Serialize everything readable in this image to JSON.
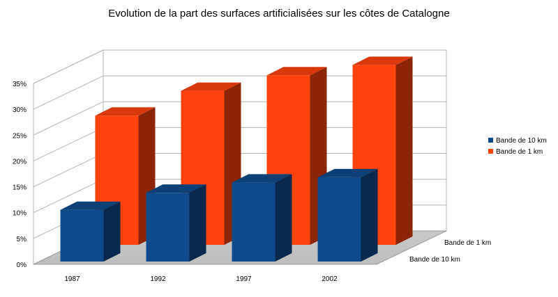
{
  "chart_data": {
    "type": "bar",
    "title": "Evolution de la part des surfaces artificialisées sur les côtes de Catalogne",
    "xlabel": "",
    "ylabel": "",
    "categories": [
      "1987",
      "1992",
      "1997",
      "2002"
    ],
    "series": [
      {
        "name": "Bande de 10 km",
        "values": [
          10,
          13.3,
          15.3,
          16.3
        ],
        "color": "#0f4b8c"
      },
      {
        "name": "Bande de 1 km",
        "values": [
          25,
          29.8,
          32.8,
          34.8
        ],
        "color": "#ff420e"
      }
    ],
    "ylim": [
      0,
      35
    ],
    "ytick_labels": [
      "0%",
      "5%",
      "10%",
      "15%",
      "20%",
      "25%",
      "30%",
      "35%"
    ],
    "depth_labels": [
      "Bande de 10 km",
      "Bande de 1 km"
    ],
    "legend_position": "right",
    "grid": true,
    "style": "3d"
  }
}
